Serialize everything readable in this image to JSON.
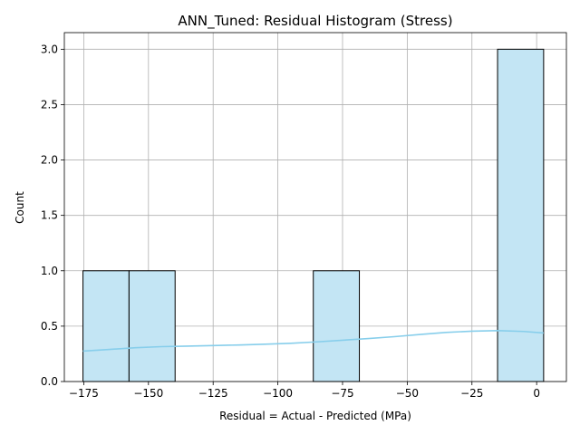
{
  "chart_data": {
    "type": "bar",
    "title": "ANN_Tuned: Residual Histogram (Stress)",
    "xlabel": "Residual = Actual - Predicted (MPa)",
    "ylabel": "Count",
    "xlim": [
      -182.5,
      11.5
    ],
    "ylim": [
      0,
      3.15
    ],
    "x_ticks": [
      -175,
      -150,
      -125,
      -100,
      -75,
      -50,
      -25,
      0
    ],
    "x_tick_labels": [
      "−175",
      "−150",
      "−125",
      "−100",
      "−75",
      "−50",
      "−25",
      "0"
    ],
    "y_ticks": [
      0.0,
      0.5,
      1.0,
      1.5,
      2.0,
      2.5,
      3.0
    ],
    "y_tick_labels": [
      "0.0",
      "0.5",
      "1.0",
      "1.5",
      "2.0",
      "2.5",
      "3.0"
    ],
    "grid": true,
    "bins": [
      {
        "x0": -175.3,
        "x1": -157.5,
        "count": 1
      },
      {
        "x0": -157.5,
        "x1": -139.7,
        "count": 1
      },
      {
        "x0": -139.7,
        "x1": -121.9,
        "count": 0
      },
      {
        "x0": -121.9,
        "x1": -104.1,
        "count": 0
      },
      {
        "x0": -104.1,
        "x1": -86.3,
        "count": 0
      },
      {
        "x0": -86.3,
        "x1": -68.5,
        "count": 1
      },
      {
        "x0": -68.5,
        "x1": -50.7,
        "count": 0
      },
      {
        "x0": -50.7,
        "x1": -32.9,
        "count": 0
      },
      {
        "x0": -32.9,
        "x1": -15.1,
        "count": 0
      },
      {
        "x0": -15.1,
        "x1": 2.7,
        "count": 3
      }
    ],
    "kde": {
      "x": [
        -175.3,
        -165,
        -155,
        -145,
        -135,
        -125,
        -115,
        -105,
        -95,
        -85,
        -75,
        -65,
        -55,
        -45,
        -35,
        -25,
        -15,
        -5,
        2.7
      ],
      "y": [
        0.275,
        0.29,
        0.305,
        0.315,
        0.32,
        0.325,
        0.33,
        0.337,
        0.345,
        0.358,
        0.373,
        0.388,
        0.405,
        0.425,
        0.443,
        0.455,
        0.46,
        0.452,
        0.438
      ]
    },
    "colors": {
      "bar_fill": "#c3e5f4",
      "bar_edge": "#000000",
      "kde_line": "#87ceeb"
    }
  }
}
